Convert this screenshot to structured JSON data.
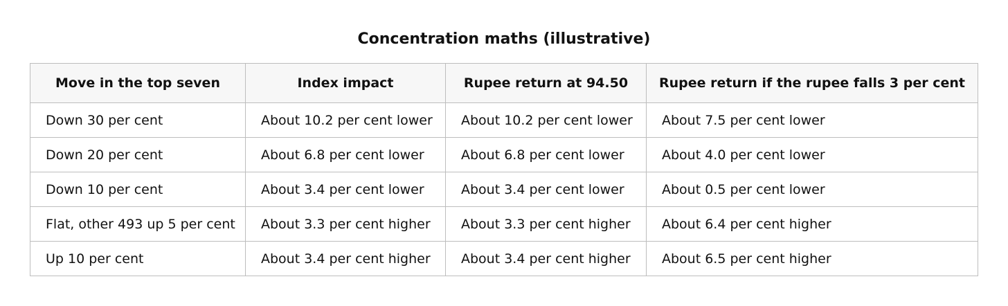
{
  "title": "Concentration maths (illustrative)",
  "table": {
    "headers": [
      "Move in the top seven",
      "Index impact",
      "Rupee return at 94.50",
      "Rupee return if the rupee falls 3 per cent"
    ],
    "rows": [
      [
        "Down 30 per cent",
        "About 10.2 per cent lower",
        "About 10.2 per cent lower",
        "About 7.5 per cent lower"
      ],
      [
        "Down 20 per cent",
        "About 6.8 per cent lower",
        "About 6.8 per cent lower",
        "About 4.0 per cent lower"
      ],
      [
        "Down 10 per cent",
        "About 3.4 per cent lower",
        "About 3.4 per cent lower",
        "About 0.5 per cent lower"
      ],
      [
        "Flat, other 493 up 5 per cent",
        "About 3.3 per cent higher",
        "About 3.3 per cent higher",
        "About 6.4 per cent higher"
      ],
      [
        "Up 10 per cent",
        "About 3.4 per cent higher",
        "About 3.4 per cent higher",
        "About 6.5 per cent higher"
      ]
    ]
  }
}
